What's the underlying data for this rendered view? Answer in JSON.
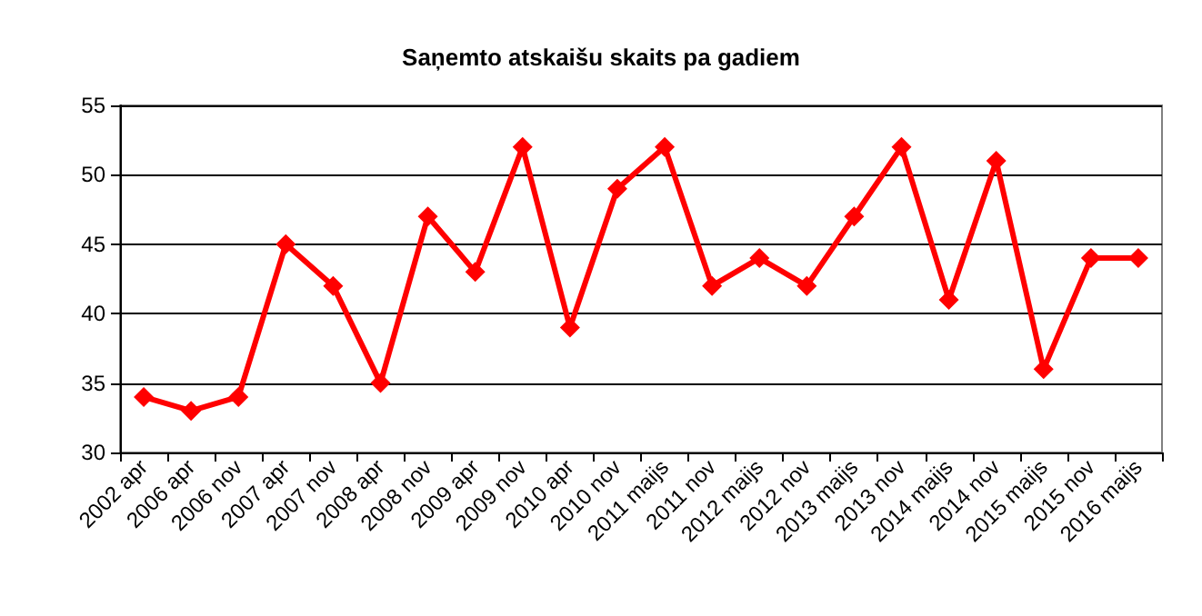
{
  "chart_data": {
    "type": "line",
    "title": "Saņemto atskaišu skaits pa gadiem",
    "categories": [
      "2002 apr",
      "2006 apr",
      "2006 nov",
      "2007 apr",
      "2007 nov",
      "2008 apr",
      "2008 nov",
      "2009 apr",
      "2009 nov",
      "2010 apr",
      "2010 nov",
      "2011 maijs",
      "2011 nov",
      "2012 maijs",
      "2012 nov",
      "2013 maijs",
      "2013 nov",
      "2014 maijs",
      "2014 nov",
      "2015 maijs",
      "2015 nov",
      "2016 maijs"
    ],
    "series": [
      {
        "color": "#ff0000",
        "values": [
          34,
          33,
          34,
          45,
          42,
          35,
          47,
          43,
          52,
          39,
          49,
          52,
          42,
          44,
          42,
          47,
          52,
          41,
          51,
          36,
          44,
          44
        ]
      }
    ],
    "ylim": [
      30,
      55
    ],
    "yticks": [
      30,
      35,
      40,
      45,
      50,
      55
    ],
    "grid": "y",
    "marker": "diamond",
    "line_style": "solid"
  }
}
